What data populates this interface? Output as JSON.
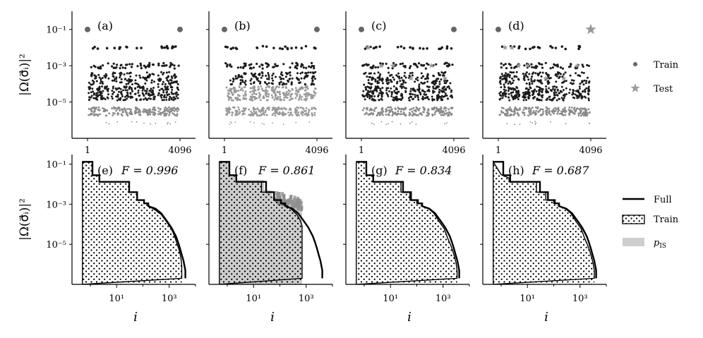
{
  "figure": {
    "ylabel": "|Ω(σ⃗ᵢ)|²",
    "xlabel": "i",
    "colors": {
      "train": "#666666",
      "test": "#9a9a9a",
      "full": "#000000",
      "pis": "#bdbdbd",
      "scatter_dark": "#1a1a1a"
    }
  },
  "legend_top": [
    {
      "label": "Train",
      "marker": "dot-icon"
    },
    {
      "label": "Test",
      "marker": "star-icon"
    }
  ],
  "legend_bottom": [
    {
      "label": "Full",
      "marker": "line-icon"
    },
    {
      "label": "Train",
      "marker": "hatch-icon"
    },
    {
      "label": "p",
      "sub": "IS",
      "marker": "gray-box-icon"
    }
  ],
  "chart_data": [
    {
      "type": "scatter",
      "panel": "(a)",
      "y_scale": "log",
      "ylim": [
        1e-07,
        1
      ],
      "xlim": [
        1,
        4096
      ],
      "x_ticks": [
        "1",
        "4096"
      ],
      "y_ticks": [
        "10⁻¹",
        "10⁻³",
        "10⁻⁵"
      ],
      "tier_values": [
        0.1,
        0.01,
        0.001,
        0.0002,
        3e-05,
        3e-06,
        7e-07
      ],
      "train_tiers": [
        0,
        1,
        2,
        3,
        4,
        5,
        6
      ],
      "test_mode": "none"
    },
    {
      "type": "scatter",
      "panel": "(b)",
      "y_scale": "log",
      "ylim": [
        1e-07,
        1
      ],
      "xlim": [
        1,
        4096
      ],
      "x_ticks": [
        "1",
        "4096"
      ],
      "y_ticks": [
        "10⁻¹",
        "10⁻³",
        "10⁻⁵"
      ],
      "tier_values": [
        0.1,
        0.01,
        0.001,
        0.0002,
        3e-05,
        3e-06,
        7e-07
      ],
      "train_tiers": [
        0,
        1,
        2,
        3
      ],
      "test_mode": "low"
    },
    {
      "type": "scatter",
      "panel": "(c)",
      "y_scale": "log",
      "ylim": [
        1e-07,
        1
      ],
      "xlim": [
        1,
        4096
      ],
      "x_ticks": [
        "1",
        "4096"
      ],
      "y_ticks": [
        "10⁻¹",
        "10⁻³",
        "10⁻⁵"
      ],
      "tier_values": [
        0.1,
        0.01,
        0.001,
        0.0002,
        3e-05,
        3e-06,
        7e-07
      ],
      "train_tiers": [
        0,
        1,
        2,
        3,
        4,
        5,
        6
      ],
      "test_mode": "sparse"
    },
    {
      "type": "scatter",
      "panel": "(d)",
      "y_scale": "log",
      "ylim": [
        1e-07,
        1
      ],
      "xlim": [
        1,
        4096
      ],
      "x_ticks": [
        "1",
        "4096"
      ],
      "y_ticks": [
        "10⁻¹",
        "10⁻³",
        "10⁻⁵"
      ],
      "tier_values": [
        0.1,
        0.01,
        0.001,
        0.0002,
        3e-05,
        3e-06,
        7e-07
      ],
      "train_tiers": [
        0,
        1,
        2,
        3,
        4,
        5,
        6
      ],
      "test_mode": "big"
    },
    {
      "type": "line",
      "panel": "(e)",
      "fidelity": "F = 0.996",
      "x_scale": "log",
      "y_scale": "log",
      "xlim": [
        0.2,
        10000
      ],
      "ylim": [
        1e-07,
        0.3
      ],
      "x_ticks": [
        "10¹",
        "10³"
      ],
      "y_ticks": [
        "10⁻¹",
        "10⁻³",
        "10⁻⁵"
      ],
      "full": {
        "x": [
          0.5,
          1.2,
          1.2,
          2.2,
          2.2,
          30,
          30,
          60,
          60,
          110,
          110,
          160,
          160,
          300,
          500,
          800,
          1200,
          1800,
          2200,
          2600,
          3000,
          3500,
          4096,
          4096
        ],
        "y": [
          0.13,
          0.13,
          0.028,
          0.028,
          0.013,
          0.013,
          0.004,
          0.004,
          0.0016,
          0.0016,
          0.0011,
          0.0011,
          0.0008,
          0.0006,
          0.00035,
          0.00015,
          7e-05,
          2.5e-05,
          1.2e-05,
          6e-06,
          3e-06,
          1.5e-06,
          5e-07,
          2e-07
        ]
      },
      "train": {
        "x": [
          0.5,
          1.2,
          1.2,
          2.2,
          2.2,
          30,
          30,
          60,
          60,
          110,
          110,
          160,
          160,
          300,
          500,
          800,
          1200,
          1600,
          2000,
          2400,
          2800,
          3000,
          3000
        ],
        "y": [
          0.13,
          0.13,
          0.028,
          0.028,
          0.013,
          0.013,
          0.004,
          0.004,
          0.0016,
          0.0016,
          0.0011,
          0.0011,
          0.0008,
          0.0005,
          0.0003,
          0.00013,
          6e-05,
          2.5e-05,
          1e-05,
          5e-06,
          2e-06,
          8e-07,
          2e-07
        ]
      },
      "pis": null
    },
    {
      "type": "line",
      "panel": "(f)",
      "fidelity": "F = 0.861",
      "x_scale": "log",
      "y_scale": "log",
      "xlim": [
        0.2,
        10000
      ],
      "ylim": [
        1e-07,
        0.3
      ],
      "x_ticks": [
        "10¹",
        "10³"
      ],
      "y_ticks": [
        "10⁻¹",
        "10⁻³",
        "10⁻⁵"
      ],
      "full": {
        "x": [
          0.5,
          1.2,
          1.2,
          2.2,
          2.2,
          30,
          30,
          60,
          60,
          110,
          110,
          160,
          160,
          300,
          500,
          800,
          1200,
          1800,
          2200,
          2600,
          3000,
          3500,
          4096,
          4096
        ],
        "y": [
          0.13,
          0.13,
          0.028,
          0.028,
          0.013,
          0.013,
          0.004,
          0.004,
          0.0016,
          0.0016,
          0.0011,
          0.0011,
          0.0008,
          0.0006,
          0.00035,
          0.00015,
          7e-05,
          2.5e-05,
          1.2e-05,
          6e-06,
          3e-06,
          1.5e-06,
          5e-07,
          2e-07
        ]
      },
      "train": {
        "x": [
          0.5,
          1.2,
          1.2,
          2.2,
          2.2,
          20,
          20,
          60,
          60,
          110,
          110,
          200,
          300,
          450,
          600,
          700,
          700
        ],
        "y": [
          0.13,
          0.13,
          0.028,
          0.028,
          0.013,
          0.013,
          0.004,
          0.004,
          0.0016,
          0.0016,
          0.0011,
          0.0008,
          0.0005,
          0.0003,
          0.00015,
          8e-05,
          2e-07
        ]
      },
      "pis": {
        "x": [
          0.5,
          1.2,
          1.2,
          2.2,
          2.2,
          25,
          25,
          50,
          50,
          90,
          90,
          140,
          200,
          300,
          400,
          550,
          700,
          700
        ],
        "y": [
          0.14,
          0.14,
          0.032,
          0.032,
          0.016,
          0.016,
          0.005,
          0.005,
          0.0025,
          0.0025,
          0.0018,
          0.0016,
          0.0012,
          0.0011,
          0.0008,
          0.0009,
          0.0007,
          2e-07
        ]
      }
    },
    {
      "type": "line",
      "panel": "(g)",
      "fidelity": "F = 0.834",
      "x_scale": "log",
      "y_scale": "log",
      "xlim": [
        0.2,
        10000
      ],
      "ylim": [
        1e-07,
        0.3
      ],
      "x_ticks": [
        "10¹",
        "10³"
      ],
      "y_ticks": [
        "10⁻¹",
        "10⁻³",
        "10⁻⁵"
      ],
      "full": {
        "x": [
          0.5,
          1.2,
          1.2,
          2.2,
          2.2,
          30,
          30,
          60,
          60,
          110,
          110,
          160,
          160,
          300,
          500,
          800,
          1200,
          1800,
          2200,
          2600,
          3000,
          3500,
          4096,
          4096
        ],
        "y": [
          0.13,
          0.13,
          0.028,
          0.028,
          0.013,
          0.013,
          0.004,
          0.004,
          0.0016,
          0.0016,
          0.0011,
          0.0011,
          0.0008,
          0.0006,
          0.00035,
          0.00015,
          7e-05,
          2.5e-05,
          1.2e-05,
          6e-06,
          3e-06,
          1.5e-06,
          5e-07,
          2e-07
        ]
      },
      "train": {
        "x": [
          0.5,
          1.2,
          1.2,
          2.2,
          2.2,
          25,
          25,
          55,
          55,
          100,
          100,
          150,
          150,
          280,
          450,
          700,
          1100,
          1500,
          1900,
          2300,
          2700,
          3100,
          3400,
          3400
        ],
        "y": [
          0.13,
          0.13,
          0.028,
          0.028,
          0.013,
          0.013,
          0.004,
          0.004,
          0.0016,
          0.0016,
          0.0011,
          0.0011,
          0.0008,
          0.0006,
          0.00035,
          0.00014,
          6e-05,
          2e-05,
          1e-05,
          5e-06,
          2.5e-06,
          1.2e-06,
          5e-07,
          2e-07
        ]
      },
      "pis": null
    },
    {
      "type": "line",
      "panel": "(h)",
      "fidelity": "F = 0.687",
      "x_scale": "log",
      "y_scale": "log",
      "xlim": [
        0.2,
        10000
      ],
      "ylim": [
        1e-07,
        0.3
      ],
      "x_ticks": [
        "10¹",
        "10³"
      ],
      "y_ticks": [
        "10⁻¹",
        "10⁻³",
        "10⁻⁵"
      ],
      "full": {
        "x": [
          0.5,
          1.2,
          1.2,
          2.2,
          2.2,
          30,
          30,
          60,
          60,
          110,
          110,
          160,
          160,
          300,
          500,
          800,
          1200,
          1800,
          2200,
          2600,
          3000,
          3500,
          4096,
          4096
        ],
        "y": [
          0.13,
          0.13,
          0.028,
          0.028,
          0.013,
          0.013,
          0.004,
          0.004,
          0.0016,
          0.0016,
          0.0011,
          0.0011,
          0.0008,
          0.0006,
          0.00035,
          0.00015,
          7e-05,
          2.5e-05,
          1.2e-05,
          6e-06,
          3e-06,
          1.5e-06,
          5e-07,
          2e-07
        ]
      },
      "train": {
        "x": [
          0.5,
          1.0,
          2.0,
          2.0,
          22,
          22,
          50,
          50,
          100,
          100,
          150,
          150,
          280,
          450,
          700,
          1100,
          1500,
          1900,
          2300,
          2700,
          3100,
          3500,
          3500
        ],
        "y": [
          0.13,
          0.03,
          0.02,
          0.013,
          0.013,
          0.004,
          0.004,
          0.0016,
          0.0016,
          0.0011,
          0.0011,
          0.0008,
          0.0006,
          0.00035,
          0.00014,
          6e-05,
          2e-05,
          1e-05,
          5e-06,
          2.5e-06,
          1.2e-06,
          5e-07,
          2e-07
        ]
      },
      "pis": null
    }
  ]
}
